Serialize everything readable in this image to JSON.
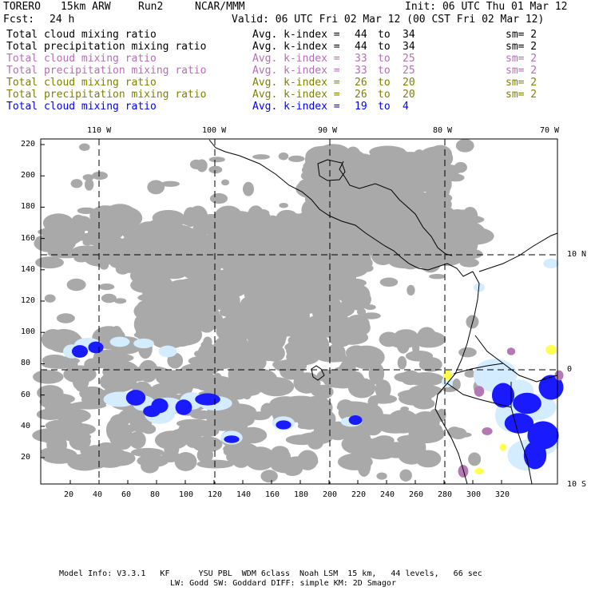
{
  "header": {
    "model": "TORERO",
    "resolution": "15km ARW",
    "run": "Run2",
    "org": "NCAR/MMM",
    "init": "Init: 06 UTC Thu 01 Mar 12",
    "fcst_label": "Fcst:",
    "fcst_value": "24 h",
    "valid": "Valid: 06 UTC Fri 02 Mar 12 (00 CST Fri 02 Mar 12)"
  },
  "legend": [
    {
      "field": "Total cloud mixing ratio",
      "idx": "Avg. k-index =",
      "from": "44",
      "to_word": "to",
      "to": "34",
      "sm": "sm= 2",
      "color": "#000000"
    },
    {
      "field": "Total precipitation mixing ratio",
      "idx": "Avg. k-index =",
      "from": "44",
      "to_word": "to",
      "to": "34",
      "sm": "sm= 2",
      "color": "#000000"
    },
    {
      "field": "Total cloud mixing ratio",
      "idx": "Avg. k-index =",
      "from": "33",
      "to_word": "to",
      "to": "25",
      "sm": "sm= 2",
      "color": "#b46fb4"
    },
    {
      "field": "Total precipitation mixing ratio",
      "idx": "Avg. k-index =",
      "from": "33",
      "to_word": "to",
      "to": "25",
      "sm": "sm= 2",
      "color": "#b46fb4"
    },
    {
      "field": "Total cloud mixing ratio",
      "idx": "Avg. k-index =",
      "from": "26",
      "to_word": "to",
      "to": "20",
      "sm": "sm= 2",
      "color": "#808000"
    },
    {
      "field": "Total precipitation mixing ratio",
      "idx": "Avg. k-index =",
      "from": "26",
      "to_word": "to",
      "to": "20",
      "sm": "sm= 2",
      "color": "#808000"
    },
    {
      "field": "Total cloud mixing ratio",
      "idx": "Avg. k-index =",
      "from": "19",
      "to_word": "to",
      "to": "4",
      "sm": "sm= null",
      "color": "#0000ff"
    }
  ],
  "map": {
    "top_lon_labels": [
      "110 W",
      "100 W",
      "90 W",
      "80 W",
      "70 W"
    ],
    "right_lat_labels": [
      "10 N",
      "0",
      "10 S"
    ],
    "left_ticks": [
      "220",
      "200",
      "180",
      "160",
      "140",
      "120",
      "100",
      "80",
      "60",
      "40",
      "20"
    ],
    "bottom_ticks": [
      "20",
      "40",
      "60",
      "80",
      "100",
      "120",
      "140",
      "160",
      "180",
      "200",
      "220",
      "240",
      "260",
      "280",
      "300",
      "320"
    ],
    "colors": {
      "cloud_gray": "#a9a9a9",
      "rain_light": "#d4ecff",
      "rain_mid": "#8ec2ff",
      "rain_deep": "#1a1aff",
      "rain_max": "#0000c8",
      "purple": "#b478b4",
      "yellow": "#ffff50"
    }
  },
  "footer": {
    "line1": "Model Info: V3.3.1   KF      YSU PBL  WDM 6class  Noah LSM  15 km,   44 levels,   66 sec",
    "line2": "LW: Godd SW: Goddard DIFF: simple KM: 2D Smagor"
  }
}
